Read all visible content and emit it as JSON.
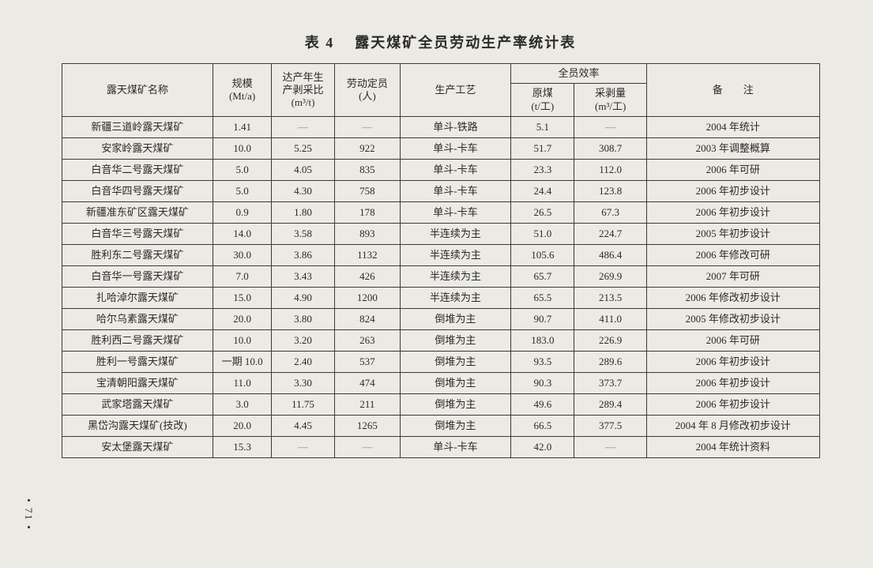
{
  "title_prefix": "表 4",
  "title_text": "露天煤矿全员劳动生产率统计表",
  "page_number": "• 71 •",
  "dash": "—",
  "header": {
    "name": "露天煤矿名称",
    "scale_l1": "规模",
    "scale_l2": "(Mt/a)",
    "ratio_l1": "达产年生",
    "ratio_l2": "产剥采比",
    "ratio_l3": "(m³/t)",
    "labor_l1": "劳动定员",
    "labor_l2": "(人)",
    "process": "生产工艺",
    "eff_group": "全员效率",
    "eff_coal_l1": "原煤",
    "eff_coal_l2": "(t/工)",
    "eff_strip_l1": "采剥量",
    "eff_strip_l2": "(m³/工)",
    "remark": "备　　注"
  },
  "rows": [
    {
      "name": "新疆三道岭露天煤矿",
      "scale": "1.41",
      "ratio": "—",
      "labor": "—",
      "process": "单斗-铁路",
      "e1": "5.1",
      "e2": "—",
      "remark": "2004 年统计"
    },
    {
      "name": "安家岭露天煤矿",
      "scale": "10.0",
      "ratio": "5.25",
      "labor": "922",
      "process": "单斗-卡车",
      "e1": "51.7",
      "e2": "308.7",
      "remark": "2003 年调整概算"
    },
    {
      "name": "白音华二号露天煤矿",
      "scale": "5.0",
      "ratio": "4.05",
      "labor": "835",
      "process": "单斗-卡车",
      "e1": "23.3",
      "e2": "112.0",
      "remark": "2006 年可研"
    },
    {
      "name": "白音华四号露天煤矿",
      "scale": "5.0",
      "ratio": "4.30",
      "labor": "758",
      "process": "单斗-卡车",
      "e1": "24.4",
      "e2": "123.8",
      "remark": "2006 年初步设计"
    },
    {
      "name": "新疆准东矿区露天煤矿",
      "scale": "0.9",
      "ratio": "1.80",
      "labor": "178",
      "process": "单斗-卡车",
      "e1": "26.5",
      "e2": "67.3",
      "remark": "2006 年初步设计"
    },
    {
      "name": "白音华三号露天煤矿",
      "scale": "14.0",
      "ratio": "3.58",
      "labor": "893",
      "process": "半连续为主",
      "e1": "51.0",
      "e2": "224.7",
      "remark": "2005 年初步设计"
    },
    {
      "name": "胜利东二号露天煤矿",
      "scale": "30.0",
      "ratio": "3.86",
      "labor": "1132",
      "process": "半连续为主",
      "e1": "105.6",
      "e2": "486.4",
      "remark": "2006 年修改可研"
    },
    {
      "name": "白音华一号露天煤矿",
      "scale": "7.0",
      "ratio": "3.43",
      "labor": "426",
      "process": "半连续为主",
      "e1": "65.7",
      "e2": "269.9",
      "remark": "2007 年可研"
    },
    {
      "name": "扎哈淖尔露天煤矿",
      "scale": "15.0",
      "ratio": "4.90",
      "labor": "1200",
      "process": "半连续为主",
      "e1": "65.5",
      "e2": "213.5",
      "remark": "2006 年修改初步设计"
    },
    {
      "name": "哈尔乌素露天煤矿",
      "scale": "20.0",
      "ratio": "3.80",
      "labor": "824",
      "process": "倒堆为主",
      "e1": "90.7",
      "e2": "411.0",
      "remark": "2005 年修改初步设计"
    },
    {
      "name": "胜利西二号露天煤矿",
      "scale": "10.0",
      "ratio": "3.20",
      "labor": "263",
      "process": "倒堆为主",
      "e1": "183.0",
      "e2": "226.9",
      "remark": "2006 年可研"
    },
    {
      "name": "胜利一号露天煤矿",
      "scale": "一期 10.0",
      "ratio": "2.40",
      "labor": "537",
      "process": "倒堆为主",
      "e1": "93.5",
      "e2": "289.6",
      "remark": "2006 年初步设计"
    },
    {
      "name": "宝清朝阳露天煤矿",
      "scale": "11.0",
      "ratio": "3.30",
      "labor": "474",
      "process": "倒堆为主",
      "e1": "90.3",
      "e2": "373.7",
      "remark": "2006 年初步设计"
    },
    {
      "name": "武家塔露天煤矿",
      "scale": "3.0",
      "ratio": "11.75",
      "labor": "211",
      "process": "倒堆为主",
      "e1": "49.6",
      "e2": "289.4",
      "remark": "2006 年初步设计"
    },
    {
      "name": "黑岱沟露天煤矿(技改)",
      "scale": "20.0",
      "ratio": "4.45",
      "labor": "1265",
      "process": "倒堆为主",
      "e1": "66.5",
      "e2": "377.5",
      "remark": "2004 年 8 月修改初步设计"
    },
    {
      "name": "安太堡露天煤矿",
      "scale": "15.3",
      "ratio": "—",
      "labor": "—",
      "process": "单斗-卡车",
      "e1": "42.0",
      "e2": "—",
      "remark": "2004 年统计资料"
    }
  ]
}
